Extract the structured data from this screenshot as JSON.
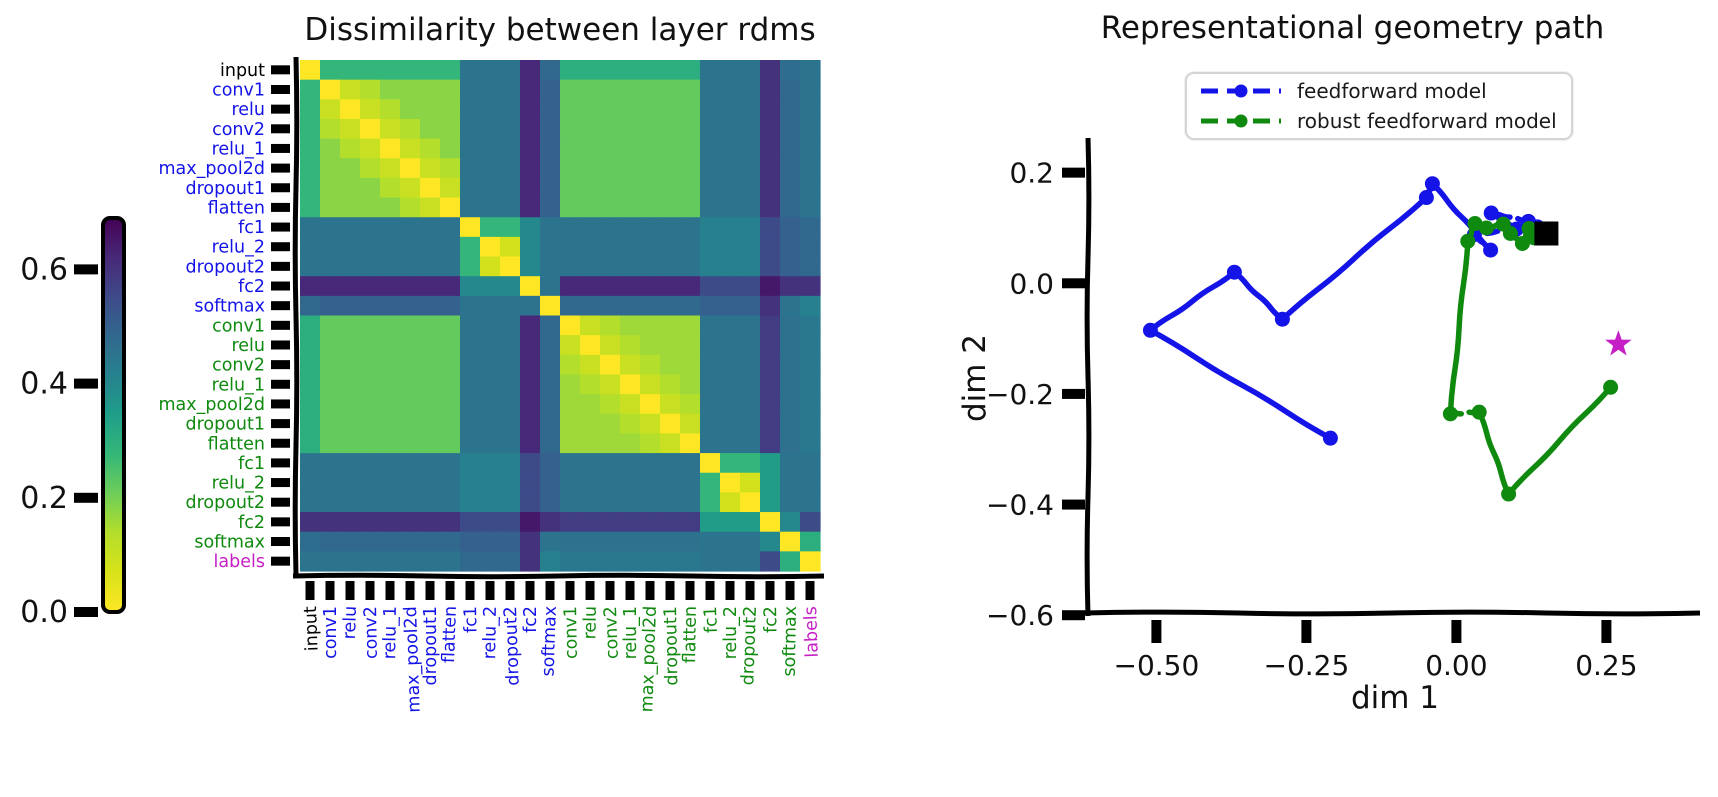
{
  "chart_data": [
    {
      "type": "heatmap",
      "title": "Dissimilarity between layer rdms",
      "labels": [
        "input",
        "conv1",
        "relu",
        "conv2",
        "relu_1",
        "max_pool2d",
        "dropout1",
        "flatten",
        "fc1",
        "relu_2",
        "dropout2",
        "fc2",
        "softmax",
        "conv1",
        "relu",
        "conv2",
        "relu_1",
        "max_pool2d",
        "dropout1",
        "flatten",
        "fc1",
        "relu_2",
        "dropout2",
        "fc2",
        "softmax",
        "labels"
      ],
      "label_colors": [
        "#000000",
        "#1414e8",
        "#1414e8",
        "#1414e8",
        "#1414e8",
        "#1414e8",
        "#1414e8",
        "#1414e8",
        "#1414e8",
        "#1414e8",
        "#1414e8",
        "#1414e8",
        "#1414e8",
        "#0f8a0f",
        "#0f8a0f",
        "#0f8a0f",
        "#0f8a0f",
        "#0f8a0f",
        "#0f8a0f",
        "#0f8a0f",
        "#0f8a0f",
        "#0f8a0f",
        "#0f8a0f",
        "#0f8a0f",
        "#0f8a0f",
        "#c520c5"
      ],
      "colormap": "viridis_reversed",
      "vmax": 0.69,
      "colorbar": {
        "vmin": 0.0,
        "vmax": 0.69,
        "ticks": [
          0.0,
          0.2,
          0.4,
          0.6
        ],
        "tick_labels": [
          "0.0",
          "0.2",
          "0.4",
          "0.6"
        ]
      },
      "groups": [
        0,
        1,
        1,
        1,
        1,
        1,
        1,
        1,
        2,
        2,
        2,
        3,
        4,
        5,
        5,
        5,
        5,
        5,
        5,
        5,
        6,
        6,
        6,
        7,
        8,
        9
      ],
      "block_means": [
        [
          0.0,
          0.28,
          0.45,
          0.62,
          0.48,
          0.3,
          0.45,
          0.6,
          0.47,
          0.45
        ],
        [
          0.28,
          0.18,
          0.45,
          0.62,
          0.5,
          0.22,
          0.45,
          0.6,
          0.48,
          0.45
        ],
        [
          0.45,
          0.45,
          0.08,
          0.4,
          0.45,
          0.45,
          0.42,
          0.55,
          0.5,
          0.48
        ],
        [
          0.62,
          0.62,
          0.4,
          0.0,
          0.45,
          0.62,
          0.55,
          0.65,
          0.6,
          0.6
        ],
        [
          0.48,
          0.5,
          0.45,
          0.45,
          0.0,
          0.48,
          0.5,
          0.6,
          0.45,
          0.42
        ],
        [
          0.3,
          0.22,
          0.45,
          0.62,
          0.48,
          0.16,
          0.45,
          0.58,
          0.46,
          0.44
        ],
        [
          0.45,
          0.45,
          0.42,
          0.55,
          0.5,
          0.45,
          0.08,
          0.35,
          0.45,
          0.45
        ],
        [
          0.6,
          0.6,
          0.55,
          0.65,
          0.6,
          0.58,
          0.35,
          0.0,
          0.4,
          0.55
        ],
        [
          0.47,
          0.48,
          0.5,
          0.6,
          0.45,
          0.46,
          0.45,
          0.4,
          0.0,
          0.3
        ],
        [
          0.45,
          0.45,
          0.48,
          0.6,
          0.42,
          0.44,
          0.45,
          0.55,
          0.3,
          0.0
        ]
      ],
      "within_group": {
        "base": 0.06,
        "slope": 0.04,
        "caps": {
          "1": 0.18,
          "2": 0.08,
          "5": 0.16,
          "6": 0.08
        },
        "fc_first_offset": 0.28,
        "fc_groups_first_index": {
          "2": 8,
          "6": 20
        }
      },
      "viridis_stops": [
        [
          0,
          "#440154"
        ],
        [
          0.1,
          "#482878"
        ],
        [
          0.2,
          "#3e4a89"
        ],
        [
          0.3,
          "#31688e"
        ],
        [
          0.4,
          "#26828e"
        ],
        [
          0.5,
          "#1f9e89"
        ],
        [
          0.6,
          "#35b779"
        ],
        [
          0.7,
          "#6ece58"
        ],
        [
          0.8,
          "#b5de2b"
        ],
        [
          0.9,
          "#d8e219"
        ],
        [
          1,
          "#fde725"
        ]
      ]
    },
    {
      "type": "line",
      "title": "Representational geometry path",
      "xlabel": "dim 1",
      "ylabel": "dim 2",
      "xlim": [
        -0.614,
        0.406
      ],
      "ylim": [
        -0.596,
        0.259
      ],
      "xticks": [
        -0.5,
        -0.25,
        0.0,
        0.25
      ],
      "xtick_labels": [
        "−0.50",
        "−0.25",
        "0.00",
        "0.25"
      ],
      "yticks": [
        0.2,
        0.0,
        -0.2,
        -0.4,
        -0.6
      ],
      "ytick_labels": [
        "0.2",
        "0.0",
        "−0.2",
        "−0.4",
        "−0.6"
      ],
      "legend_position": "upper right",
      "legend": [
        {
          "label": "feedforward model",
          "color": "#1414e8"
        },
        {
          "label": "robust feedforward model",
          "color": "#0f8a0f"
        }
      ],
      "series": [
        {
          "name": "feedforward model",
          "color": "#1414e8",
          "points": [
            [
              0.15,
              0.09
            ],
            [
              0.135,
              0.102
            ],
            [
              0.12,
              0.112
            ],
            [
              0.058,
              0.127
            ],
            [
              0.1,
              0.098
            ],
            [
              0.03,
              0.088
            ],
            [
              0.057,
              0.06
            ],
            [
              -0.04,
              0.18
            ],
            [
              -0.05,
              0.155
            ],
            [
              -0.29,
              -0.065
            ],
            [
              -0.37,
              0.02
            ],
            [
              -0.51,
              -0.085
            ],
            [
              -0.21,
              -0.28
            ]
          ]
        },
        {
          "name": "robust feedforward model",
          "color": "#0f8a0f",
          "points": [
            [
              0.15,
              0.09
            ],
            [
              0.13,
              0.082
            ],
            [
              0.121,
              0.099
            ],
            [
              0.11,
              0.072
            ],
            [
              0.09,
              0.09
            ],
            [
              0.078,
              0.107
            ],
            [
              0.05,
              0.1
            ],
            [
              0.031,
              0.108
            ],
            [
              0.019,
              0.076
            ],
            [
              -0.01,
              -0.236
            ],
            [
              0.038,
              -0.233
            ],
            [
              0.087,
              -0.381
            ],
            [
              0.257,
              -0.188
            ]
          ]
        }
      ],
      "markers": [
        {
          "name": "input-rdm-square",
          "shape": "square",
          "color": "#000000",
          "point": [
            0.15,
            0.09
          ]
        },
        {
          "name": "labels-rdm-star",
          "shape": "star",
          "color": "#c520c5",
          "point": [
            0.27,
            -0.11
          ]
        }
      ]
    }
  ]
}
